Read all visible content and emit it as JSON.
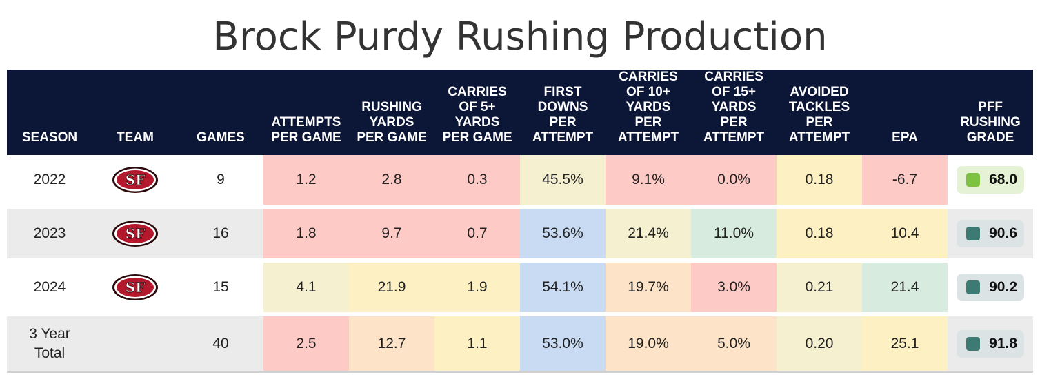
{
  "title": "Brock Purdy Rushing Production",
  "colors": {
    "header_bg": "#0c1636",
    "red": "#fecac6",
    "orange": "#fde3c7",
    "yellow": "#fdf0c2",
    "cream": "#f5f0d0",
    "blue": "#c9dbf2",
    "green": "#d7ebde",
    "grade_high": "#3e7a74",
    "grade_mid": "#7dc242"
  },
  "chart_data": {
    "type": "table",
    "columns": [
      "SEASON",
      "TEAM",
      "GAMES",
      "ATTEMPTS\nPER GAME",
      "RUSHING\nYARDS\nPER GAME",
      "CARRIES\nOF 5+\nYARDS\nPER GAME",
      "FIRST\nDOWNS\nPER\nATTEMPT",
      "CARRIES\nOF 10+\nYARDS\nPER\nATTEMPT",
      "CARRIES\nOF 15+\nYARDS\nPER\nATTEMPT",
      "AVOIDED\nTACKLES\nPER\nATTEMPT",
      "EPA",
      "PFF\nRUSHING\nGRADE"
    ],
    "rows": [
      {
        "season": "2022",
        "team_logo": "49ers-logo",
        "games": "9",
        "cells": [
          "1.2",
          "2.8",
          "0.3",
          "45.5%",
          "9.1%",
          "0.0%",
          "0.18",
          "-6.7"
        ],
        "cell_colors": [
          "red",
          "red",
          "red",
          "cream",
          "red",
          "red",
          "yellow",
          "red"
        ],
        "grade": "68.0",
        "grade_color": "grade_mid",
        "grade_bg": "#e6f2d5"
      },
      {
        "season": "2023",
        "team_logo": "49ers-logo",
        "games": "16",
        "cells": [
          "1.8",
          "9.7",
          "0.7",
          "53.6%",
          "21.4%",
          "11.0%",
          "0.18",
          "10.4"
        ],
        "cell_colors": [
          "red",
          "red",
          "red",
          "blue",
          "cream",
          "green",
          "yellow",
          "yellow"
        ],
        "grade": "90.6",
        "grade_color": "grade_high",
        "grade_bg": "#dce3e5"
      },
      {
        "season": "2024",
        "team_logo": "49ers-logo",
        "games": "15",
        "cells": [
          "4.1",
          "21.9",
          "1.9",
          "54.1%",
          "19.7%",
          "3.0%",
          "0.21",
          "21.4"
        ],
        "cell_colors": [
          "cream",
          "yellow",
          "yellow",
          "blue",
          "orange",
          "red",
          "cream",
          "green"
        ],
        "grade": "90.2",
        "grade_color": "grade_high",
        "grade_bg": "#dce3e5"
      },
      {
        "season": "3 Year\nTotal",
        "team_logo": "",
        "games": "40",
        "cells": [
          "2.5",
          "12.7",
          "1.1",
          "53.0%",
          "19.0%",
          "5.0%",
          "0.20",
          "25.1"
        ],
        "cell_colors": [
          "red",
          "orange",
          "yellow",
          "blue",
          "orange",
          "orange",
          "cream",
          "yellow"
        ],
        "grade": "91.8",
        "grade_color": "grade_high",
        "grade_bg": "#dce3e5"
      }
    ]
  }
}
